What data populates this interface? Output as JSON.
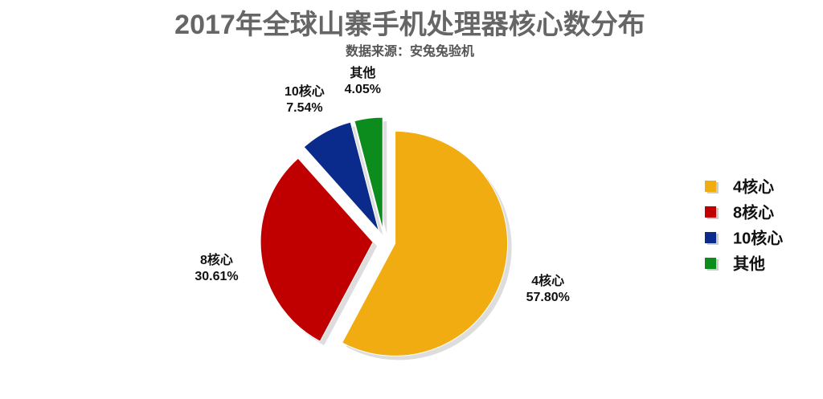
{
  "chart_data": {
    "type": "pie",
    "title": "2017年全球山寨手机处理器核心数分布",
    "subtitle": "数据来源：安兔兔验机",
    "categories": [
      "4核心",
      "8核心",
      "10核心",
      "其他"
    ],
    "values": [
      57.8,
      30.61,
      7.54,
      4.05
    ],
    "value_labels": [
      "57.80%",
      "30.61%",
      "7.54%",
      "4.05%"
    ],
    "colors": [
      "#f0ac10",
      "#c00000",
      "#0b2b8c",
      "#0b8c1c"
    ],
    "legend": "right"
  }
}
